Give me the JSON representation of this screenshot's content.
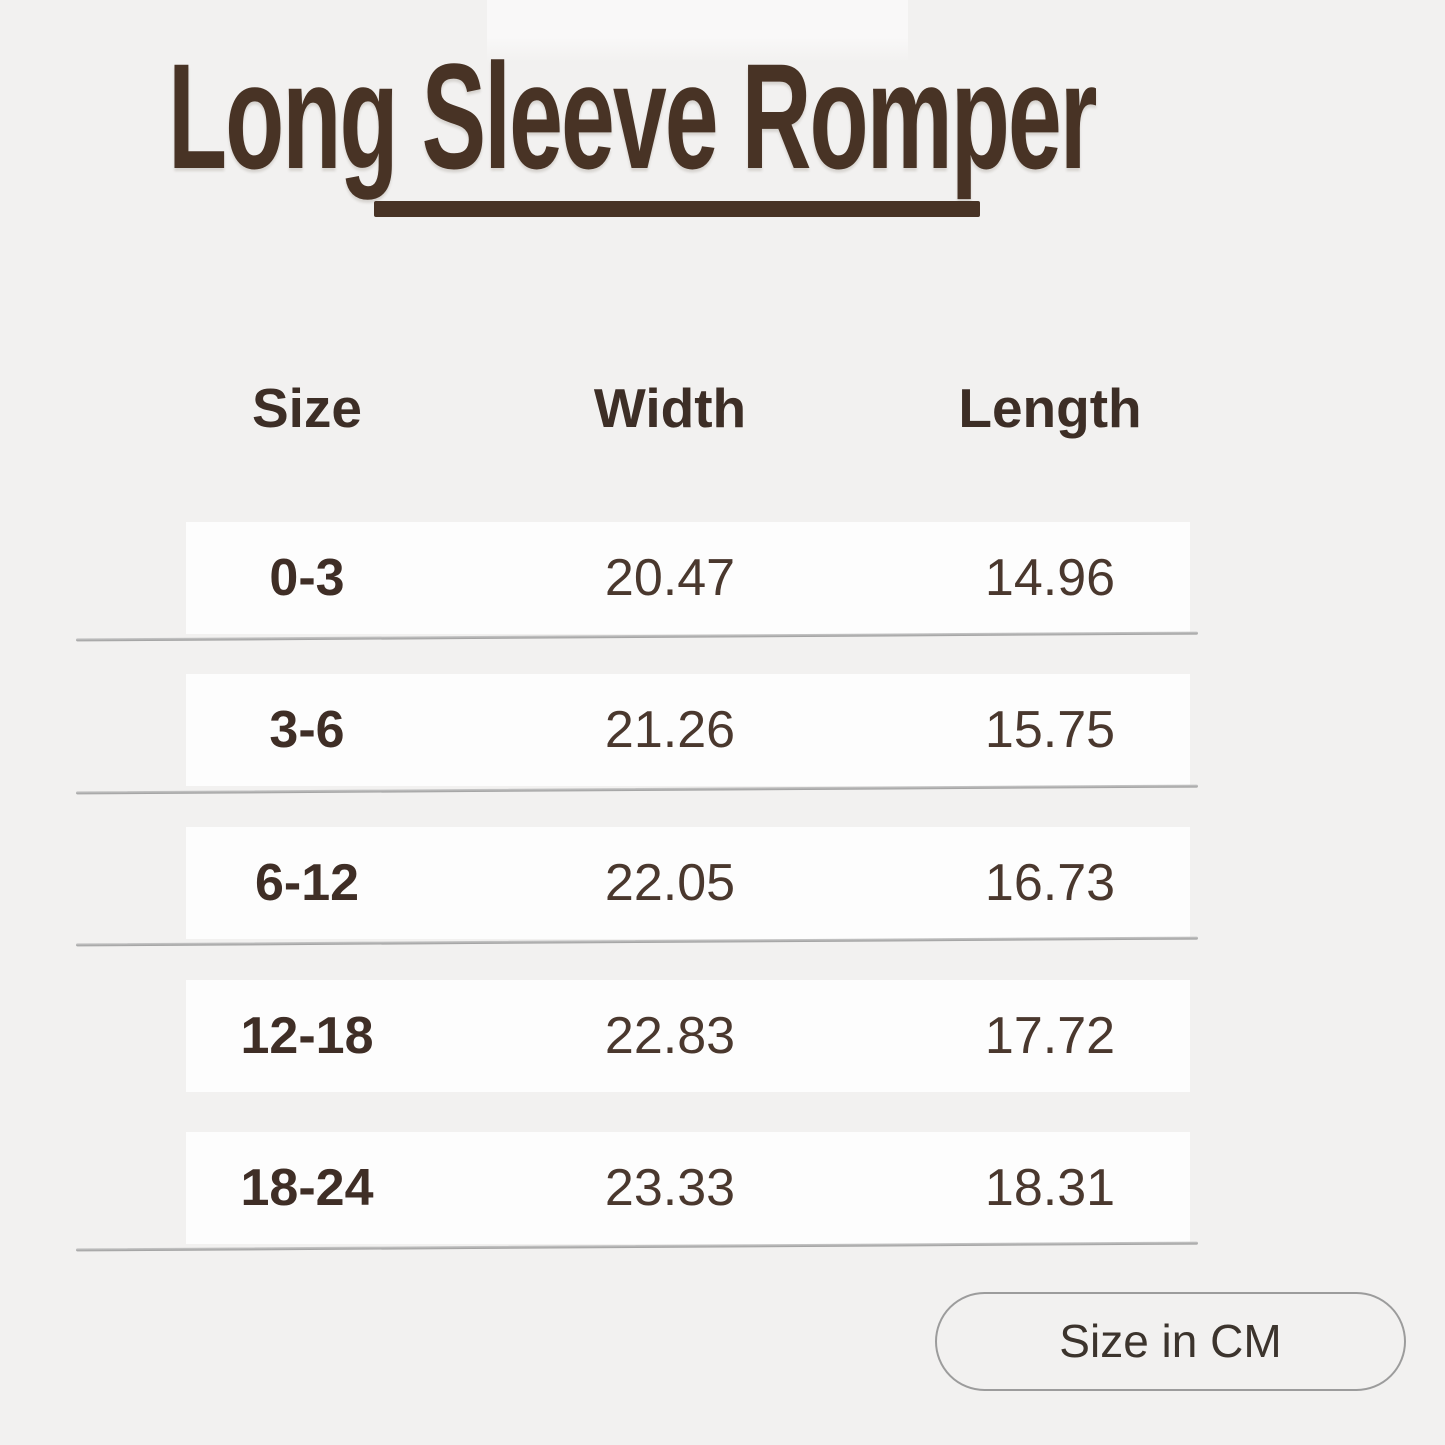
{
  "chart_data": {
    "type": "table",
    "title": "Long Sleeve Romper",
    "columns": [
      "Size",
      "Width",
      "Length"
    ],
    "rows": [
      [
        "0-3",
        "20.47",
        "14.96"
      ],
      [
        "3-6",
        "21.26",
        "15.75"
      ],
      [
        "6-12",
        "22.05",
        "16.73"
      ],
      [
        "12-18",
        "22.83",
        "17.72"
      ],
      [
        "18-24",
        "23.33",
        "18.31"
      ]
    ],
    "footer_badge": "Size in CM",
    "unit": "CM",
    "layout": "title top-left with underline, 3-column table with white row bands on gray background, unit badge bottom-right"
  },
  "colors": {
    "background": "#f2f1f0",
    "row_background": "#fdfdfd",
    "title_brown": "#483325",
    "header_text": "#3d2e26",
    "value_text": "#4a382e",
    "divider_gray": "#a8a8a8",
    "badge_border": "#9c9c9c",
    "badge_text": "#3c342d"
  }
}
